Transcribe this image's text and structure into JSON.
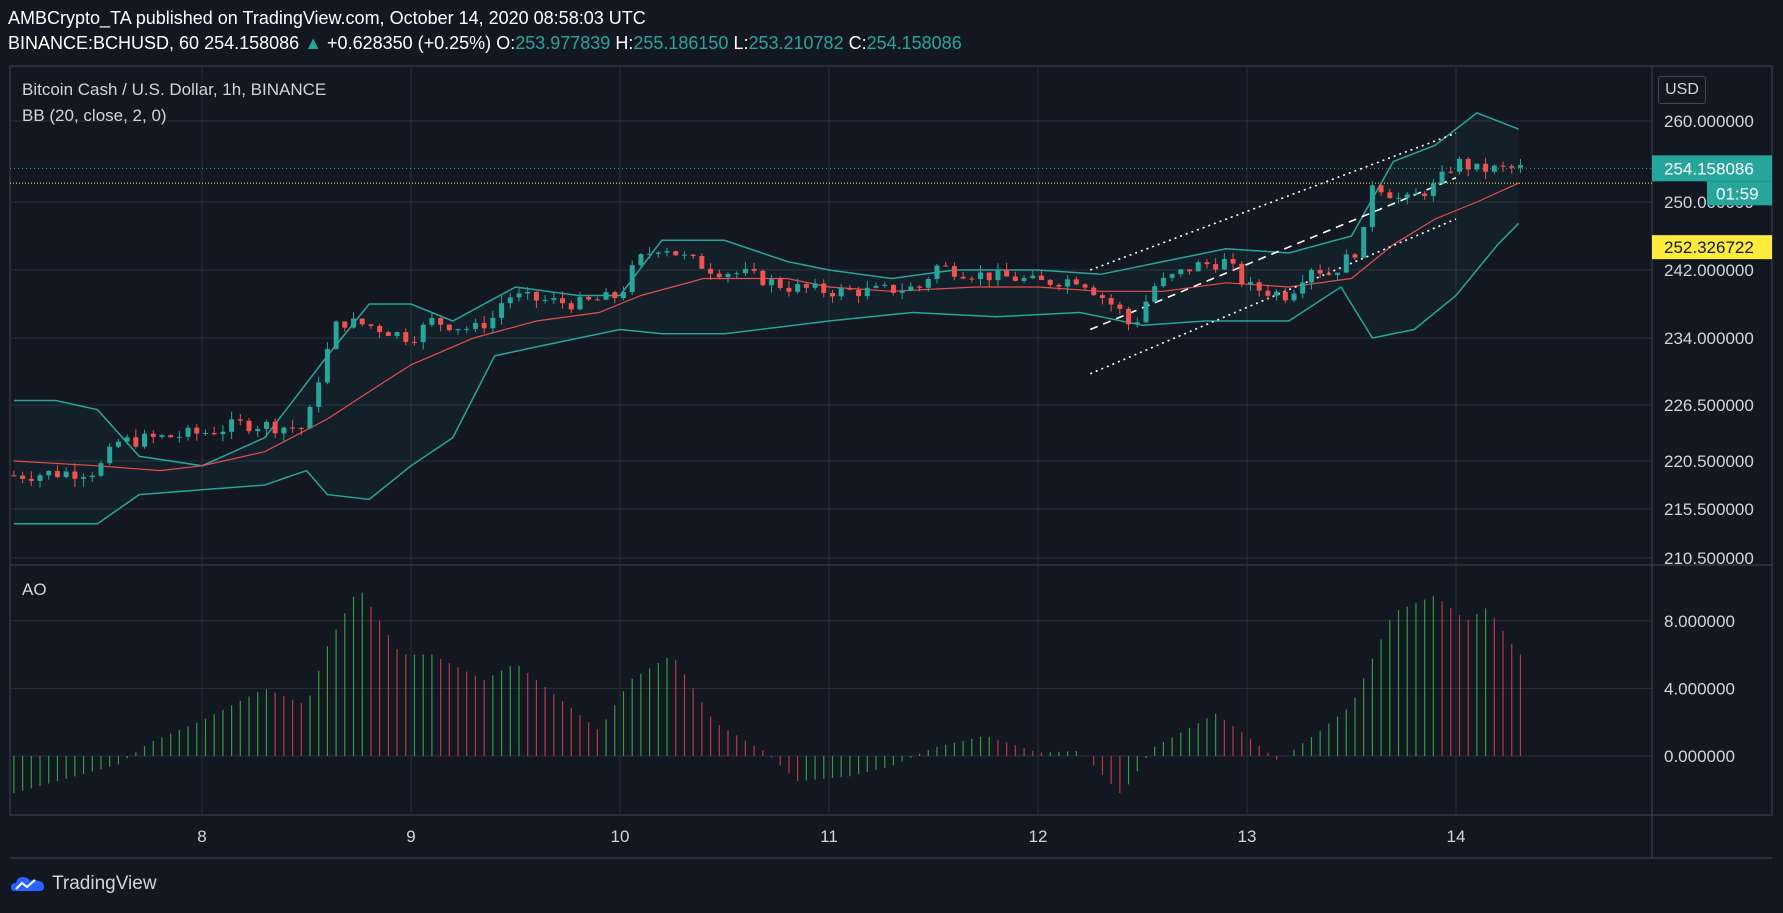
{
  "header": {
    "author": "AMBCrypto_TA",
    "published": "published on TradingView.com, October 14, 2020 08:58:03 UTC",
    "symbol": "BINANCE:BCHUSD, 60",
    "last": "254.158086",
    "change": "+0.628350 (+0.25%)",
    "o_label": "O:",
    "o": "253.977839",
    "h_label": "H:",
    "h": "255.186150",
    "l_label": "L:",
    "l": "253.210782",
    "c_label": "C:",
    "c": "254.158086"
  },
  "legend": {
    "title": "Bitcoin Cash / U.S. Dollar, 1h, BINANCE",
    "indicator": "BB (20, close, 2, 0)",
    "oscillator": "AO"
  },
  "currency_button": "USD",
  "footer": {
    "brand": "TradingView"
  },
  "colors": {
    "background": "#131722",
    "up": "#26a69a",
    "down": "#ef5350",
    "band": "#26a69a",
    "basis": "#e84c4c",
    "highlight": "#ffeb3b"
  },
  "chart_data": [
    {
      "type": "line",
      "subtype": "candlestick-with-bollinger-bands",
      "title": "Bitcoin Cash / U.S. Dollar, 1h, BINANCE",
      "x_ticks": [
        "8",
        "9",
        "10",
        "11",
        "12",
        "13",
        "14"
      ],
      "y_ticks": [
        "260.000000",
        "250.000000",
        "242.000000",
        "234.000000",
        "226.500000",
        "220.500000",
        "215.500000",
        "210.500000"
      ],
      "ylim": [
        210.5,
        260
      ],
      "price_labels": {
        "last": "254.158086",
        "countdown": "01:59",
        "marked": "252.326722"
      },
      "grid": true,
      "series": [
        {
          "name": "Close",
          "points": [
            [
              7.1,
              219.0
            ],
            [
              7.5,
              219.5
            ],
            [
              7.6,
              222.5
            ],
            [
              8.0,
              223.5
            ],
            [
              8.2,
              224.5
            ],
            [
              8.5,
              224.0
            ],
            [
              8.55,
              229.0
            ],
            [
              8.6,
              232.5
            ],
            [
              8.65,
              236.0
            ],
            [
              8.8,
              235.5
            ],
            [
              9.0,
              234.0
            ],
            [
              9.1,
              236.0
            ],
            [
              9.3,
              235.0
            ],
            [
              9.4,
              236.5
            ],
            [
              9.45,
              239.0
            ],
            [
              9.6,
              238.5
            ],
            [
              9.8,
              238.0
            ],
            [
              10.0,
              239.0
            ],
            [
              10.08,
              243.0
            ],
            [
              10.2,
              245.0
            ],
            [
              10.3,
              243.5
            ],
            [
              10.45,
              242.0
            ],
            [
              10.6,
              241.5
            ],
            [
              10.8,
              240.0
            ],
            [
              11.0,
              239.5
            ],
            [
              11.2,
              239.5
            ],
            [
              11.45,
              240.0
            ],
            [
              11.5,
              242.5
            ],
            [
              11.7,
              241.5
            ],
            [
              11.9,
              241.0
            ],
            [
              12.0,
              240.5
            ],
            [
              12.2,
              241.0
            ],
            [
              12.4,
              237.0
            ],
            [
              12.45,
              235.0
            ],
            [
              12.55,
              240.0
            ],
            [
              12.75,
              242.5
            ],
            [
              12.9,
              243.0
            ],
            [
              13.0,
              240.0
            ],
            [
              13.2,
              239.0
            ],
            [
              13.3,
              242.5
            ],
            [
              13.4,
              241.5
            ],
            [
              13.55,
              245.0
            ],
            [
              13.6,
              252.5
            ],
            [
              13.75,
              250.0
            ],
            [
              13.9,
              252.0
            ],
            [
              14.0,
              255.0
            ],
            [
              14.1,
              254.0
            ],
            [
              14.3,
              254.16
            ]
          ]
        },
        {
          "name": "BB upper",
          "points": [
            [
              7.1,
              227.0
            ],
            [
              7.3,
              227.0
            ],
            [
              7.5,
              226.0
            ],
            [
              7.7,
              221.0
            ],
            [
              8.0,
              220.0
            ],
            [
              8.3,
              223.0
            ],
            [
              8.6,
              232.0
            ],
            [
              8.8,
              238.0
            ],
            [
              9.0,
              238.0
            ],
            [
              9.2,
              236.0
            ],
            [
              9.5,
              240.0
            ],
            [
              9.8,
              239.0
            ],
            [
              10.0,
              239.0
            ],
            [
              10.2,
              245.5
            ],
            [
              10.5,
              245.5
            ],
            [
              10.8,
              243.0
            ],
            [
              11.0,
              242.0
            ],
            [
              11.3,
              241.0
            ],
            [
              11.6,
              242.0
            ],
            [
              12.0,
              242.0
            ],
            [
              12.3,
              241.5
            ],
            [
              12.6,
              243.0
            ],
            [
              12.9,
              244.5
            ],
            [
              13.2,
              244.0
            ],
            [
              13.5,
              246.0
            ],
            [
              13.7,
              255.0
            ],
            [
              13.9,
              257.0
            ],
            [
              14.1,
              261.0
            ],
            [
              14.3,
              259.0
            ]
          ]
        },
        {
          "name": "BB lower",
          "points": [
            [
              7.1,
              214.0
            ],
            [
              7.5,
              214.0
            ],
            [
              7.7,
              217.0
            ],
            [
              8.0,
              217.5
            ],
            [
              8.3,
              218.0
            ],
            [
              8.5,
              219.5
            ],
            [
              8.6,
              217.0
            ],
            [
              8.8,
              216.5
            ],
            [
              9.0,
              220.0
            ],
            [
              9.2,
              223.0
            ],
            [
              9.4,
              232.0
            ],
            [
              9.6,
              233.0
            ],
            [
              10.0,
              235.0
            ],
            [
              10.2,
              234.5
            ],
            [
              10.5,
              234.5
            ],
            [
              11.0,
              236.0
            ],
            [
              11.4,
              237.0
            ],
            [
              11.8,
              236.5
            ],
            [
              12.2,
              237.0
            ],
            [
              12.5,
              235.5
            ],
            [
              12.8,
              236.0
            ],
            [
              13.2,
              236.0
            ],
            [
              13.45,
              240.0
            ],
            [
              13.6,
              234.0
            ],
            [
              13.8,
              235.0
            ],
            [
              14.0,
              239.0
            ],
            [
              14.2,
              245.0
            ],
            [
              14.3,
              247.5
            ]
          ]
        },
        {
          "name": "BB basis",
          "points": [
            [
              7.1,
              220.5
            ],
            [
              7.5,
              220.0
            ],
            [
              7.8,
              219.5
            ],
            [
              8.0,
              220.0
            ],
            [
              8.3,
              221.5
            ],
            [
              8.6,
              225.0
            ],
            [
              8.8,
              228.0
            ],
            [
              9.0,
              231.0
            ],
            [
              9.3,
              234.0
            ],
            [
              9.6,
              236.0
            ],
            [
              9.9,
              237.0
            ],
            [
              10.1,
              239.0
            ],
            [
              10.4,
              241.0
            ],
            [
              10.8,
              241.0
            ],
            [
              11.0,
              240.0
            ],
            [
              11.3,
              239.5
            ],
            [
              11.7,
              240.0
            ],
            [
              12.0,
              240.0
            ],
            [
              12.3,
              239.5
            ],
            [
              12.6,
              239.5
            ],
            [
              12.9,
              240.5
            ],
            [
              13.2,
              240.0
            ],
            [
              13.5,
              241.0
            ],
            [
              13.7,
              245.0
            ],
            [
              13.9,
              248.0
            ],
            [
              14.1,
              250.0
            ],
            [
              14.3,
              252.33
            ]
          ]
        },
        {
          "name": "Channel upper",
          "points": [
            [
              12.25,
              242.0
            ],
            [
              14.0,
              258.5
            ]
          ]
        },
        {
          "name": "Channel middle",
          "points": [
            [
              12.25,
              235.0
            ],
            [
              14.0,
              253.0
            ]
          ]
        },
        {
          "name": "Channel lower",
          "points": [
            [
              12.25,
              230.0
            ],
            [
              14.0,
              248.0
            ]
          ]
        }
      ]
    },
    {
      "type": "bar",
      "title": "AO",
      "x_ticks": [
        "8",
        "9",
        "10",
        "11",
        "12",
        "13",
        "14"
      ],
      "y_ticks": [
        "8.000000",
        "4.000000",
        "0.000000"
      ],
      "ylim": [
        -3.5,
        10.5
      ],
      "x": [
        7.1,
        7.6,
        7.75,
        8.0,
        8.3,
        8.5,
        8.6,
        8.75,
        8.95,
        9.1,
        9.35,
        9.5,
        9.7,
        9.9,
        10.05,
        10.25,
        10.45,
        10.7,
        10.85,
        11.1,
        11.3,
        11.5,
        11.75,
        12.0,
        12.2,
        12.4,
        12.55,
        12.85,
        13.0,
        13.15,
        13.35,
        13.5,
        13.7,
        13.9,
        14.05,
        14.15,
        14.3
      ],
      "values": [
        -2.2,
        -0.5,
        0.8,
        2.1,
        4.0,
        3.0,
        6.5,
        10.0,
        6.0,
        6.0,
        4.5,
        5.5,
        3.5,
        1.5,
        4.5,
        6.0,
        2.0,
        0.2,
        -1.5,
        -1.2,
        -0.6,
        0.5,
        1.2,
        0.2,
        0.3,
        -2.3,
        0.5,
        2.5,
        1.2,
        -0.3,
        1.5,
        3.0,
        8.5,
        9.5,
        8.0,
        8.8,
        6.0
      ]
    }
  ]
}
